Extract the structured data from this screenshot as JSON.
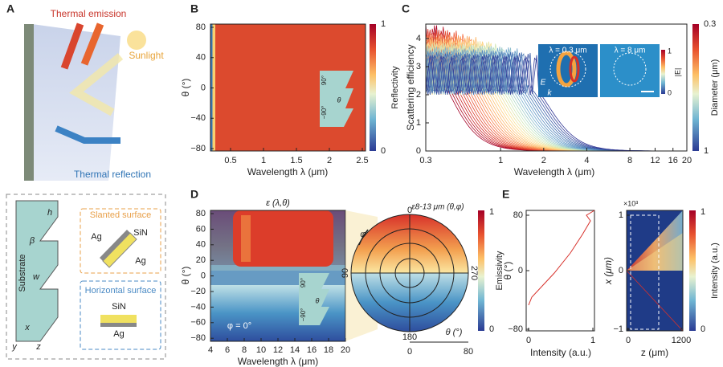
{
  "panel_a": {
    "label": "A",
    "thermal_emission": "Thermal emission",
    "sunlight": "Sunlight",
    "thermal_reflection": "Thermal reflection",
    "h": "h",
    "beta": "β",
    "w": "w",
    "substrate": "Substrate",
    "slanted": {
      "title": "Slanted surface",
      "layers": [
        "SiN",
        "Ag",
        "Ag"
      ]
    },
    "horizontal": {
      "title": "Horizontal surface",
      "layers": [
        "SiN",
        "Ag"
      ]
    },
    "axes": [
      "x",
      "y",
      "z"
    ]
  },
  "panel_b": {
    "label": "B",
    "y_label": "θ (°)",
    "x_label": "Wavelength λ (μm)",
    "y_ticks": [
      "80",
      "40",
      "0",
      "−40",
      "−80"
    ],
    "x_ticks": [
      "0.5",
      "1",
      "1.5",
      "2",
      "2.5"
    ],
    "colorbar": {
      "ticks": [
        "1",
        "0"
      ],
      "label": "Reflectivity"
    },
    "inset": [
      "−90°",
      "90°",
      "θ"
    ]
  },
  "panel_c": {
    "label": "C",
    "y_label": "Scattering efficiency",
    "x_label": "Wavelength λ (μm)",
    "y_ticks": [
      "4",
      "3",
      "2",
      "1",
      "0"
    ],
    "x_ticks": [
      "0.3",
      "1",
      "2",
      "4",
      "8",
      "12",
      "16",
      "20"
    ],
    "inset_titles": [
      "λ = 0.3 μm",
      "λ = 8 μm"
    ],
    "field_labels": [
      "E",
      "k"
    ],
    "inset_colorbar": {
      "ticks": [
        "1",
        "0"
      ],
      "label": "|E|"
    },
    "colorbar": {
      "ticks": [
        "0.3",
        "1"
      ],
      "label": "Diameter (μm)"
    }
  },
  "panel_d": {
    "label": "D",
    "title": "ε (λ,θ)",
    "y_label": "θ (°)",
    "x_label": "Wavelength λ (μm)",
    "y_ticks": [
      "80",
      "60",
      "40",
      "20",
      "0",
      "−20",
      "−40",
      "−60",
      "−80"
    ],
    "x_ticks": [
      "4",
      "6",
      "8",
      "10",
      "12",
      "14",
      "16",
      "18",
      "20"
    ],
    "phi_note": "φ = 0°",
    "inset": [
      "−90°",
      "90°",
      "θ"
    ],
    "polar": {
      "title": "ε8-13 μm (θ,φ)",
      "angles": [
        "0",
        "90",
        "270",
        "180"
      ],
      "phi": "φ",
      "theta_label": "θ (°)",
      "theta_ticks": [
        "0",
        "80"
      ]
    },
    "colorbar": {
      "ticks": [
        "1",
        "0"
      ],
      "label": "Emissivity"
    }
  },
  "panel_e": {
    "label": "E",
    "left": {
      "y_label": "θ (°)",
      "y_ticks": [
        "80",
        "0",
        "−80"
      ],
      "x_label": "Intensity (a.u.)",
      "x_ticks": [
        "0",
        "1"
      ]
    },
    "right": {
      "multiplier": "×10³",
      "y_label": "x (μm)",
      "y_ticks": [
        "1",
        "0",
        "−1"
      ],
      "x_label": "z (μm)",
      "x_ticks": [
        "0",
        "1200"
      ]
    },
    "colorbar": {
      "ticks": [
        "1",
        "0"
      ],
      "label": "Intensity (a.u.)"
    }
  }
}
